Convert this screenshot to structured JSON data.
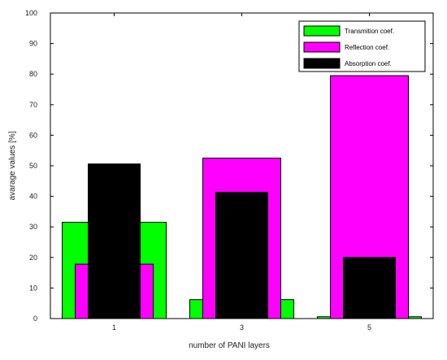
{
  "chart_data": {
    "type": "bar",
    "xlabel": "number of PANI layers",
    "ylabel": "avarage values [%]",
    "ylim": [
      0,
      100
    ],
    "yticks": [
      0,
      10,
      20,
      30,
      40,
      50,
      60,
      70,
      80,
      90,
      100
    ],
    "categories": [
      "1",
      "3",
      "5"
    ],
    "grid": false,
    "legend_position": "top-right",
    "series": [
      {
        "name": "Transmition coef.",
        "color": "#00ff00",
        "values": [
          31.5,
          6.2,
          0.6
        ]
      },
      {
        "name": "Reflection coef.",
        "color": "#ff00ff",
        "values": [
          17.8,
          52.5,
          79.5
        ]
      },
      {
        "name": "Absorption coef.",
        "color": "#000000",
        "values": [
          50.6,
          41.3,
          20.0
        ]
      }
    ]
  }
}
